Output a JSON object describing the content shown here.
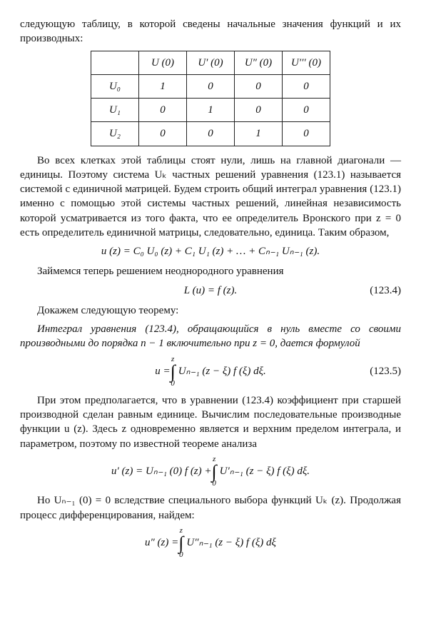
{
  "intro": "следующую таблицу, в которой сведены начальные значения функций и их производных:",
  "table": {
    "headers": [
      "",
      "U (0)",
      "U′ (0)",
      "U″ (0)",
      "U′′′ (0)"
    ],
    "rows": [
      [
        "U₀",
        "1",
        "0",
        "0",
        "0"
      ],
      [
        "U₁",
        "0",
        "1",
        "0",
        "0"
      ],
      [
        "U₂",
        "0",
        "0",
        "1",
        "0"
      ]
    ]
  },
  "para1": "Во всех клетках этой таблицы стоят нули, лишь на главной диагонали — единицы. Поэтому система Uₖ частных решений уравнения (123.1) называется системой с единичной матрицей. Будем строить общий интеграл уравнения (123.1) именно с помощью этой системы частных решений, линейная независимость которой усматривается из того факта, что ее определитель Вронского при z = 0 есть определитель единичной матрицы, следовательно, единица. Таким образом,",
  "eq1": "u (z) = C₀ U₀ (z) + C₁ U₁ (z) + … + Cₙ₋₁ Uₙ₋₁ (z).",
  "para2": "Займемся теперь решением неоднородного уравнения",
  "eq2": "L (u) = f (z).",
  "eq2num": "(123.4)",
  "para3": "Докажем следующую теорему:",
  "theorem": "Интеграл уравнения (123.4), обращающийся в нуль вместе со своими производными до порядка n − 1 включительно при z = 0, дается формулой",
  "eq3_lhs": "u =",
  "eq3_upper": "z",
  "eq3_lower": "0",
  "eq3_rhs": "Uₙ₋₁ (z − ξ) f (ξ) dξ.",
  "eq3num": "(123.5)",
  "para4": "При этом предполагается, что в уравнении (123.4) коэффициент при старшей производной сделан равным единице. Вычислим последовательные производные функции u (z). Здесь z одновременно является и верхним пределом интеграла, и параметром, поэтому по известной теореме анализа",
  "eq4_lhs": "u′ (z) = Uₙ₋₁ (0) f (z) +",
  "eq4_upper": "z",
  "eq4_lower": "0",
  "eq4_rhs": "U′ₙ₋₁ (z − ξ) f (ξ) dξ.",
  "para5": "Но Uₙ₋₁ (0) = 0 вследствие специального выбора функций Uₖ (z). Продолжая процесс дифференцирования, найдем:",
  "eq5_lhs": "u″ (z) =",
  "eq5_upper": "z",
  "eq5_lower": "0",
  "eq5_rhs": "U″ₙ₋₁ (z − ξ) f (ξ) dξ"
}
